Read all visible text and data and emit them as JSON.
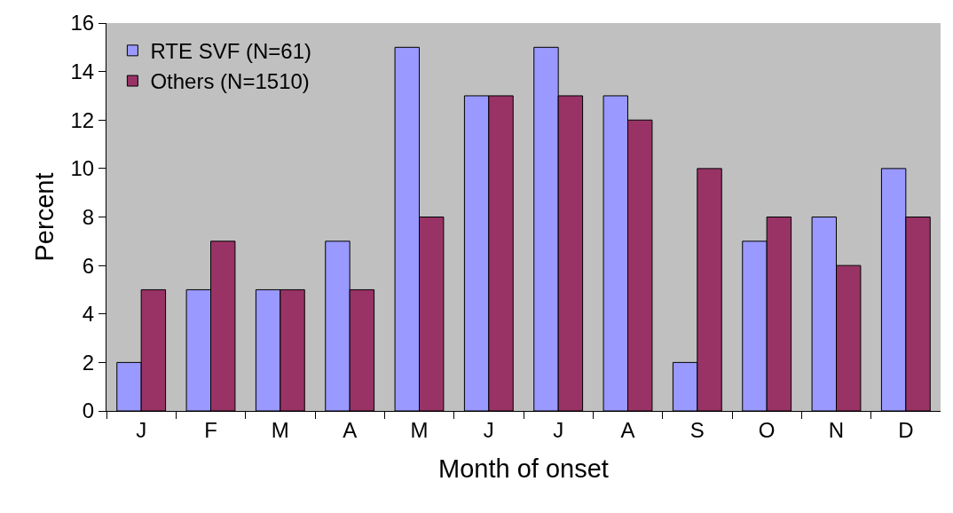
{
  "chart_data": {
    "type": "bar",
    "xlabel": "Month of onset",
    "ylabel": "Percent",
    "categories": [
      "J",
      "F",
      "M",
      "A",
      "M",
      "J",
      "J",
      "A",
      "S",
      "O",
      "N",
      "D"
    ],
    "series": [
      {
        "name": "RTE SVF (N=61)",
        "color": "#9999ff",
        "values": [
          2,
          5,
          5,
          7,
          15,
          13,
          15,
          13,
          2,
          7,
          8,
          10
        ]
      },
      {
        "name": "Others (N=1510)",
        "color": "#993366",
        "values": [
          5,
          7,
          5,
          5,
          8,
          13,
          13,
          12,
          10,
          8,
          6,
          8
        ]
      }
    ],
    "ylim": [
      0,
      16
    ],
    "yticks": [
      0,
      2,
      4,
      6,
      8,
      10,
      12,
      14,
      16
    ],
    "grid": false,
    "legend": "top left"
  }
}
